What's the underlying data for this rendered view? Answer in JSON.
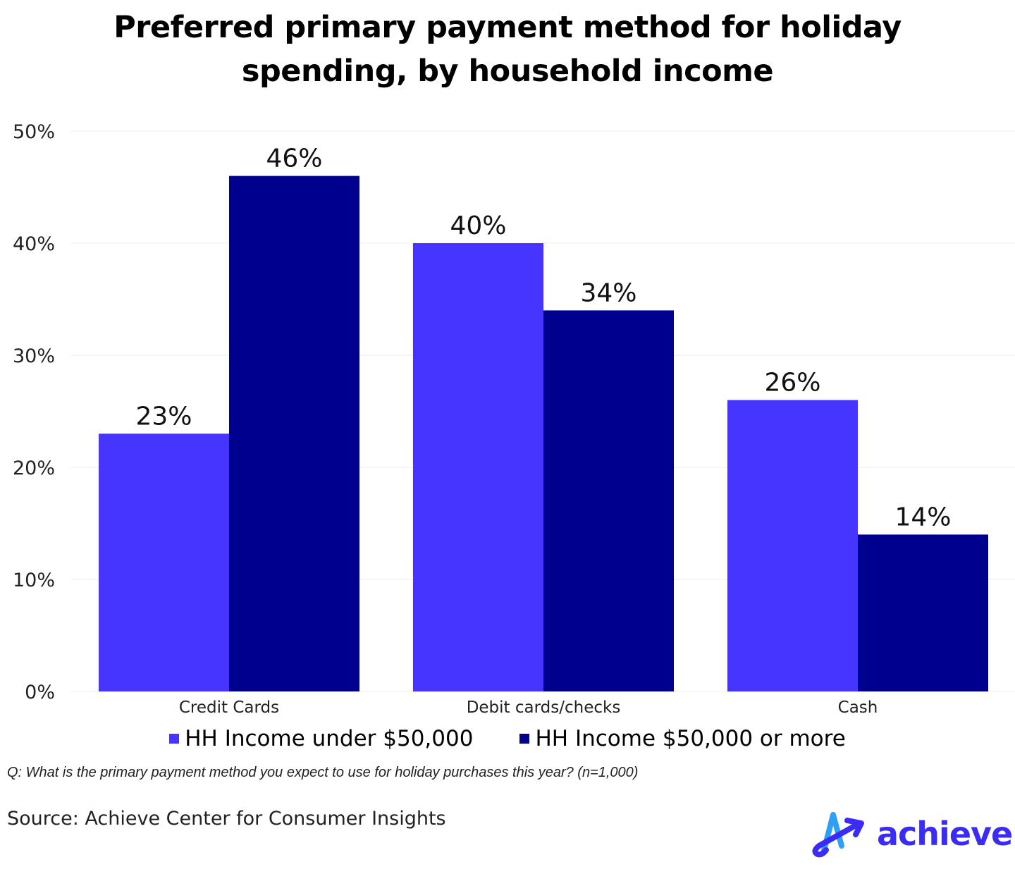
{
  "chart_data": {
    "type": "bar",
    "title": "Preferred primary payment method for holiday spending, by household income",
    "categories": [
      "Credit Cards",
      "Debit cards/checks",
      "Cash"
    ],
    "series": [
      {
        "name": "HH Income under $50,000",
        "values": [
          23,
          40,
          26
        ],
        "color": "#4634ff"
      },
      {
        "name": "HH Income $50,000 or more",
        "values": [
          46,
          34,
          14
        ],
        "color": "#00008f"
      }
    ],
    "ylim": [
      0,
      50
    ],
    "yticks": [
      0,
      10,
      20,
      30,
      40,
      50
    ],
    "ytick_labels": [
      "0%",
      "10%",
      "20%",
      "30%",
      "40%",
      "50%"
    ],
    "data_labels": [
      [
        "23%",
        "40%",
        "26%"
      ],
      [
        "46%",
        "34%",
        "14%"
      ]
    ],
    "xlabel": "",
    "ylabel": "",
    "grid": true,
    "legend": "bottom"
  },
  "title_lines": [
    "Preferred primary payment method for holiday",
    "spending, by household income"
  ],
  "question": "Q: What is the primary payment method you expect to use for holiday purchases this year? (n=1,000)",
  "source": "Source: Achieve Center for Consumer Insights",
  "logo_text": "achieve"
}
